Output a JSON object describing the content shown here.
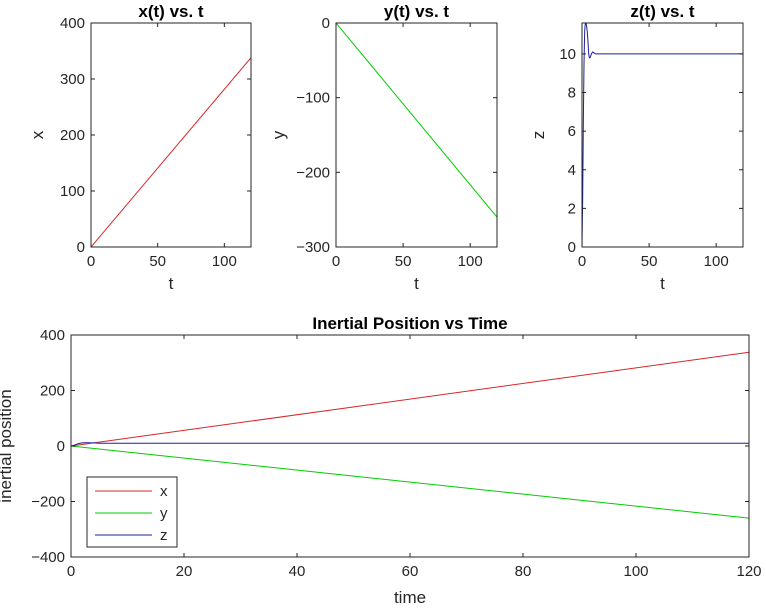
{
  "chart_data": [
    {
      "type": "line",
      "title": "x(t) vs. t",
      "xlabel": "t",
      "ylabel": "x",
      "xlim": [
        0,
        120
      ],
      "ylim": [
        0,
        400
      ],
      "xticks": [
        0,
        50,
        100
      ],
      "yticks": [
        0,
        100,
        200,
        300,
        400
      ],
      "grid": false,
      "series": [
        {
          "color": "#d62728",
          "x": [
            0,
            120
          ],
          "y": [
            0,
            338
          ]
        }
      ]
    },
    {
      "type": "line",
      "title": "y(t) vs. t",
      "xlabel": "t",
      "ylabel": "y",
      "xlim": [
        0,
        120
      ],
      "ylim": [
        -300,
        0
      ],
      "xticks": [
        0,
        50,
        100
      ],
      "yticks": [
        -300,
        -200,
        -100,
        0
      ],
      "grid": false,
      "series": [
        {
          "color": "#00cc00",
          "x": [
            0,
            120
          ],
          "y": [
            0,
            -260
          ]
        }
      ]
    },
    {
      "type": "line",
      "title": "z(t) vs. t",
      "xlabel": "t",
      "ylabel": "z",
      "xlim": [
        0,
        120
      ],
      "ylim": [
        0,
        11.6
      ],
      "xticks": [
        0,
        50,
        100
      ],
      "yticks": [
        0,
        2,
        4,
        6,
        8,
        10
      ],
      "grid": false,
      "series": [
        {
          "color": "#1f1f9e",
          "x": [
            0,
            0.5,
            1,
            1.5,
            2,
            2.5,
            3,
            3.5,
            4,
            4.5,
            5,
            5.5,
            6,
            7,
            8,
            9,
            10,
            12,
            15,
            20,
            40,
            60,
            80,
            100,
            120
          ],
          "y": [
            0,
            2.5,
            6.5,
            9.5,
            11.2,
            11.6,
            11.6,
            11.4,
            11.1,
            10.6,
            10.0,
            9.8,
            9.8,
            10.0,
            10.1,
            10.05,
            10.0,
            10.0,
            10.0,
            10.0,
            10.0,
            10.0,
            10.0,
            10.0,
            10.0
          ]
        }
      ]
    },
    {
      "type": "line",
      "title": "Inertial Position vs Time",
      "xlabel": "time",
      "ylabel": "inertial position",
      "xlim": [
        0,
        120
      ],
      "ylim": [
        -400,
        400
      ],
      "xticks": [
        0,
        20,
        40,
        60,
        80,
        100,
        120
      ],
      "yticks": [
        -400,
        -200,
        0,
        200,
        400
      ],
      "grid": false,
      "legend_position": "bottom-left",
      "series": [
        {
          "name": "x",
          "color": "#d62728",
          "x": [
            0,
            120
          ],
          "y": [
            0,
            338
          ]
        },
        {
          "name": "y",
          "color": "#00cc00",
          "x": [
            0,
            120
          ],
          "y": [
            0,
            -260
          ]
        },
        {
          "name": "z",
          "color": "#1f1f9e",
          "x": [
            0,
            0.5,
            1,
            1.5,
            2,
            2.5,
            3,
            3.5,
            4,
            4.5,
            5,
            5.5,
            6,
            7,
            8,
            9,
            10,
            12,
            15,
            20,
            40,
            60,
            80,
            100,
            120
          ],
          "y": [
            0,
            2.5,
            6.5,
            9.5,
            11.2,
            11.6,
            11.6,
            11.4,
            11.1,
            10.6,
            10.0,
            9.8,
            9.8,
            10.0,
            10.1,
            10.05,
            10.0,
            10.0,
            10.0,
            10.0,
            10.0,
            10.0,
            10.0,
            10.0,
            10.0
          ]
        }
      ]
    }
  ]
}
